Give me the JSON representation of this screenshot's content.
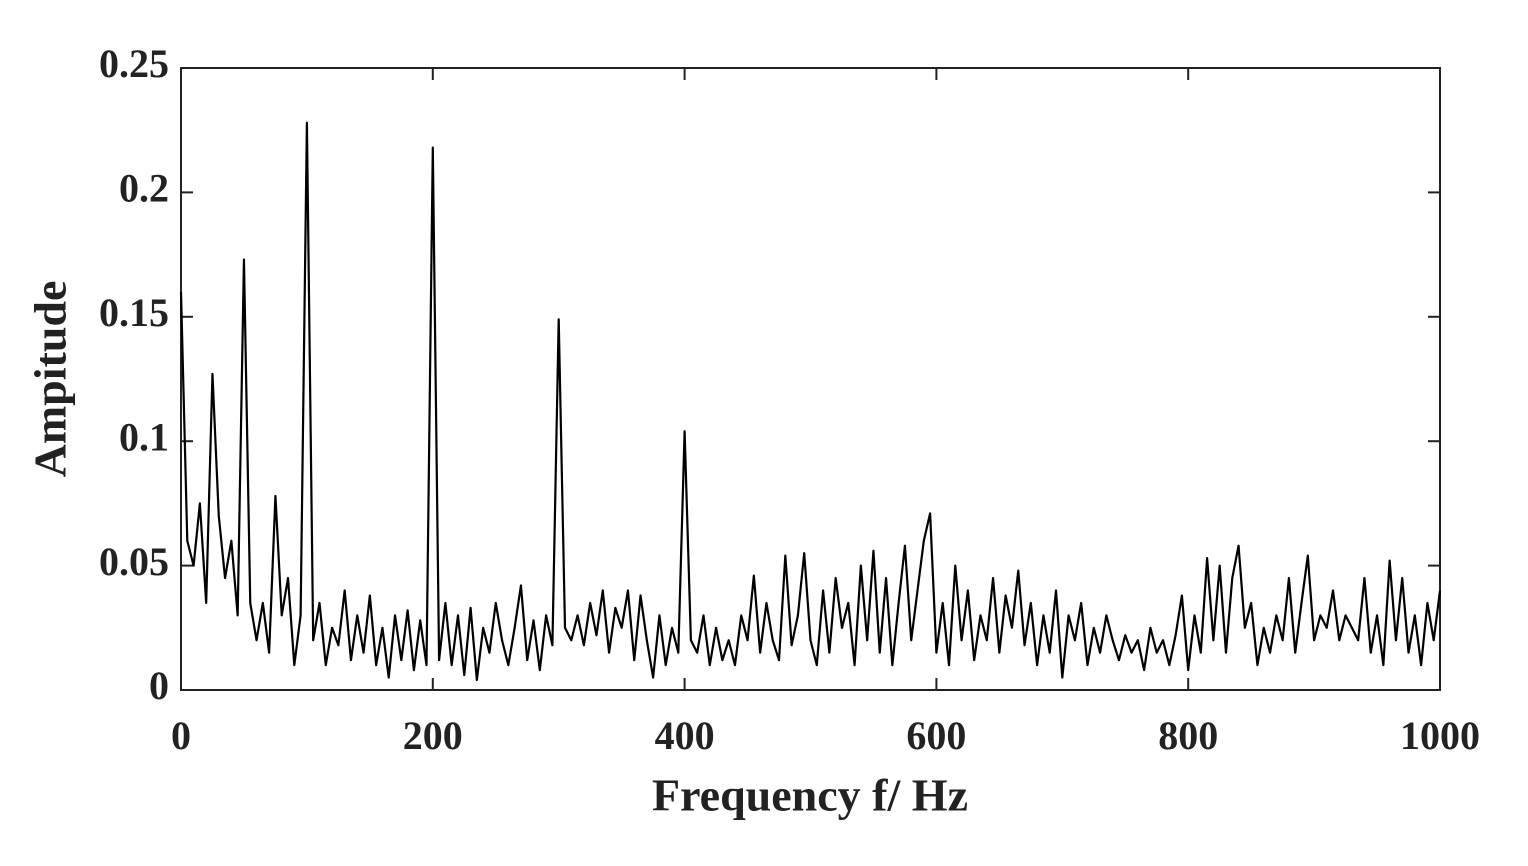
{
  "chart_data": {
    "type": "line",
    "xlabel": "Frequency f/ Hz",
    "ylabel": "Ampitude",
    "color": "#000000",
    "x": [
      0,
      5,
      10,
      15,
      20,
      25,
      30,
      35,
      40,
      45,
      50,
      55,
      60,
      65,
      70,
      75,
      80,
      85,
      90,
      95,
      100,
      105,
      110,
      115,
      120,
      125,
      130,
      135,
      140,
      145,
      150,
      155,
      160,
      165,
      170,
      175,
      180,
      185,
      190,
      195,
      200,
      205,
      210,
      215,
      220,
      225,
      230,
      235,
      240,
      245,
      250,
      255,
      260,
      265,
      270,
      275,
      280,
      285,
      290,
      295,
      300,
      305,
      310,
      315,
      320,
      325,
      330,
      335,
      340,
      345,
      350,
      355,
      360,
      365,
      370,
      375,
      380,
      385,
      390,
      395,
      400,
      405,
      410,
      415,
      420,
      425,
      430,
      435,
      440,
      445,
      450,
      455,
      460,
      465,
      470,
      475,
      480,
      485,
      490,
      495,
      500,
      505,
      510,
      515,
      520,
      525,
      530,
      535,
      540,
      545,
      550,
      555,
      560,
      565,
      570,
      575,
      580,
      585,
      590,
      595,
      600,
      605,
      610,
      615,
      620,
      625,
      630,
      635,
      640,
      645,
      650,
      655,
      660,
      665,
      670,
      675,
      680,
      685,
      690,
      695,
      700,
      705,
      710,
      715,
      720,
      725,
      730,
      735,
      740,
      745,
      750,
      755,
      760,
      765,
      770,
      775,
      780,
      785,
      790,
      795,
      800,
      805,
      810,
      815,
      820,
      825,
      830,
      835,
      840,
      845,
      850,
      855,
      860,
      865,
      870,
      875,
      880,
      885,
      890,
      895,
      900,
      905,
      910,
      915,
      920,
      925,
      930,
      935,
      940,
      945,
      950,
      955,
      960,
      965,
      970,
      975,
      980,
      985,
      990,
      995,
      1000
    ],
    "values": [
      0.16,
      0.06,
      0.05,
      0.075,
      0.035,
      0.127,
      0.07,
      0.045,
      0.06,
      0.03,
      0.173,
      0.035,
      0.02,
      0.035,
      0.015,
      0.078,
      0.03,
      0.045,
      0.01,
      0.03,
      0.228,
      0.02,
      0.035,
      0.01,
      0.025,
      0.018,
      0.04,
      0.012,
      0.03,
      0.015,
      0.038,
      0.01,
      0.025,
      0.005,
      0.03,
      0.012,
      0.032,
      0.008,
      0.028,
      0.01,
      0.218,
      0.012,
      0.035,
      0.01,
      0.03,
      0.006,
      0.033,
      0.004,
      0.025,
      0.015,
      0.035,
      0.02,
      0.01,
      0.025,
      0.042,
      0.012,
      0.028,
      0.008,
      0.03,
      0.018,
      0.149,
      0.025,
      0.02,
      0.03,
      0.018,
      0.035,
      0.022,
      0.04,
      0.015,
      0.033,
      0.025,
      0.04,
      0.012,
      0.038,
      0.02,
      0.005,
      0.03,
      0.01,
      0.025,
      0.015,
      0.104,
      0.02,
      0.015,
      0.03,
      0.01,
      0.025,
      0.012,
      0.02,
      0.01,
      0.03,
      0.02,
      0.046,
      0.015,
      0.035,
      0.02,
      0.012,
      0.054,
      0.018,
      0.03,
      0.055,
      0.02,
      0.01,
      0.04,
      0.015,
      0.045,
      0.025,
      0.035,
      0.01,
      0.05,
      0.02,
      0.056,
      0.015,
      0.045,
      0.01,
      0.035,
      0.058,
      0.02,
      0.04,
      0.06,
      0.071,
      0.015,
      0.035,
      0.01,
      0.05,
      0.02,
      0.04,
      0.012,
      0.03,
      0.02,
      0.045,
      0.015,
      0.038,
      0.025,
      0.048,
      0.018,
      0.035,
      0.01,
      0.03,
      0.015,
      0.04,
      0.005,
      0.03,
      0.02,
      0.035,
      0.01,
      0.025,
      0.015,
      0.03,
      0.02,
      0.012,
      0.022,
      0.015,
      0.02,
      0.008,
      0.025,
      0.015,
      0.02,
      0.01,
      0.022,
      0.038,
      0.008,
      0.03,
      0.015,
      0.053,
      0.02,
      0.05,
      0.015,
      0.045,
      0.058,
      0.025,
      0.035,
      0.01,
      0.025,
      0.015,
      0.03,
      0.02,
      0.045,
      0.015,
      0.035,
      0.054,
      0.02,
      0.03,
      0.025,
      0.04,
      0.02,
      0.03,
      0.025,
      0.02,
      0.045,
      0.015,
      0.03,
      0.01,
      0.052,
      0.02,
      0.045,
      0.015,
      0.03,
      0.01,
      0.035,
      0.02,
      0.04
    ],
    "xlim": [
      0,
      1000
    ],
    "xticks": [
      0,
      200,
      400,
      600,
      800,
      1000
    ],
    "ylim": [
      0,
      0.25
    ],
    "yticks": [
      0,
      0.05,
      0.1,
      0.15,
      0.2,
      0.25
    ],
    "grid": false
  }
}
